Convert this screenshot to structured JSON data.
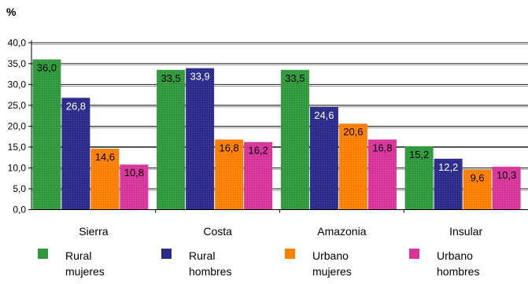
{
  "chart_data": {
    "type": "bar",
    "ylabel": "%",
    "ylim": [
      0,
      40
    ],
    "ytick_step": 5,
    "ytick_labels": [
      "0,0",
      "5,0",
      "10,0",
      "15,0",
      "20,0",
      "25,0",
      "30,0",
      "35,0",
      "40,0"
    ],
    "grid": true,
    "legend_position": "bottom",
    "categories": [
      "Sierra",
      "Costa",
      "Amazonia",
      "Insular"
    ],
    "series": [
      {
        "name": "Rural mujeres",
        "legend_lines": [
          "Rural",
          "mujeres"
        ],
        "color": "#2e9a3c",
        "label_color": "#000000",
        "values": [
          36.0,
          33.5,
          33.5,
          15.2
        ],
        "labels": [
          "36,0",
          "33,5",
          "33,5",
          "15,2"
        ]
      },
      {
        "name": "Rural hombres",
        "legend_lines": [
          "Rural",
          "hombres"
        ],
        "color": "#2a2a8c",
        "label_color": "#ffffff",
        "values": [
          26.8,
          33.9,
          24.6,
          12.2
        ],
        "labels": [
          "26,8",
          "33,9",
          "24,6",
          "12,2"
        ]
      },
      {
        "name": "Urbano mujeres",
        "legend_lines": [
          "Urbano",
          "mujeres"
        ],
        "color": "#ff7f00",
        "label_color": "#000000",
        "values": [
          14.6,
          16.8,
          20.6,
          9.6
        ],
        "labels": [
          "14,6",
          "16,8",
          "20,6",
          "9,6"
        ]
      },
      {
        "name": "Urbano hombres",
        "legend_lines": [
          "Urbano",
          "hombres"
        ],
        "color": "#d9339c",
        "label_color": "#000000",
        "values": [
          10.8,
          16.2,
          16.8,
          10.3
        ],
        "labels": [
          "10,8",
          "16,2",
          "16,8",
          "10,3"
        ]
      }
    ]
  }
}
